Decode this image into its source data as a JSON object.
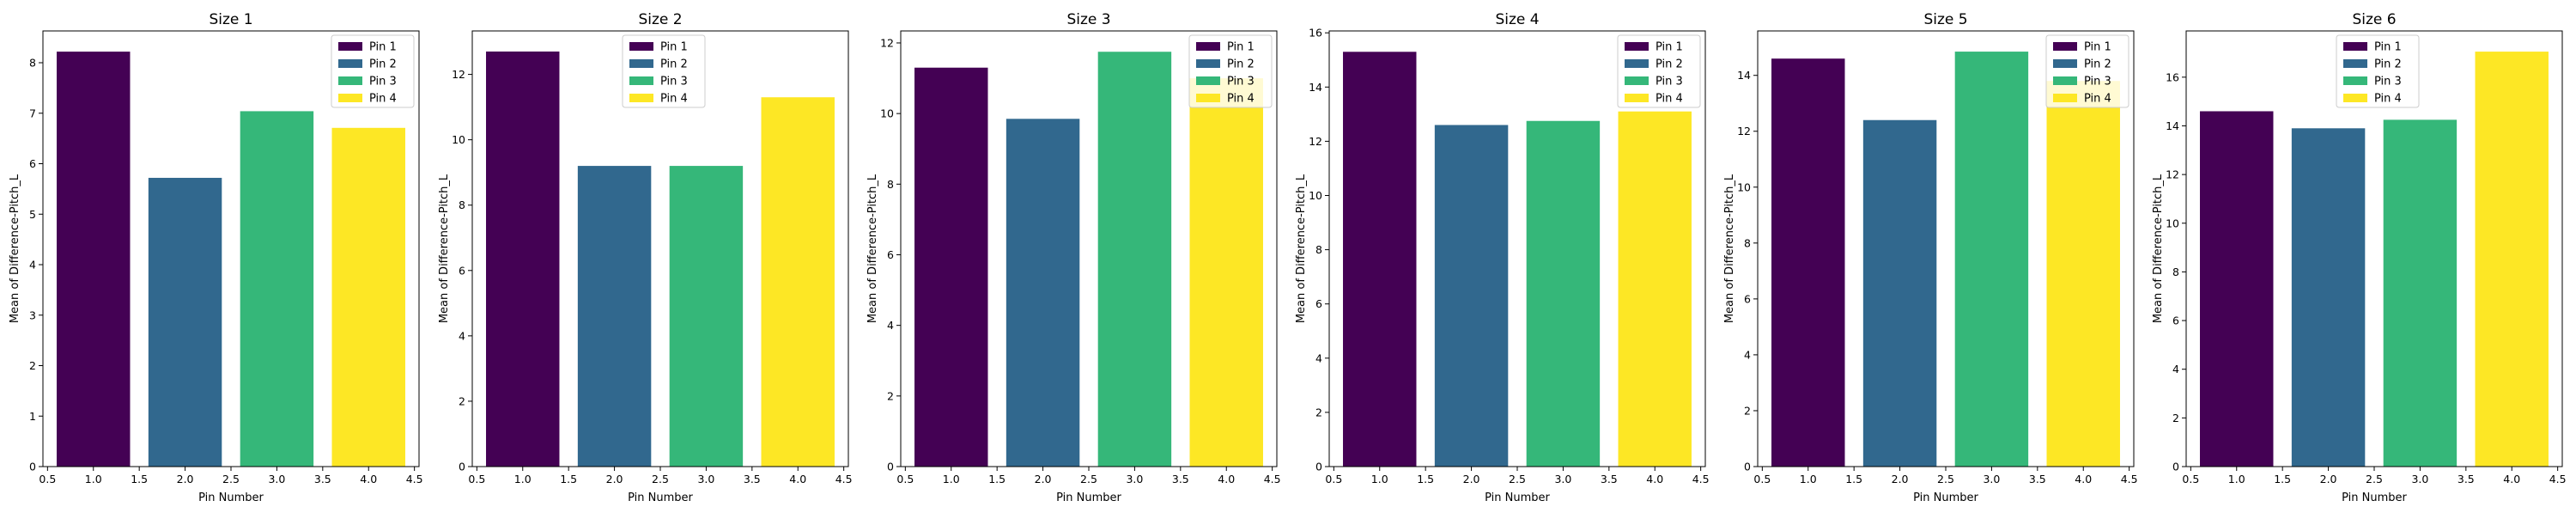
{
  "colors": {
    "pin1": "#440154",
    "pin2": "#31688e",
    "pin3": "#35b779",
    "pin4": "#fde725"
  },
  "chart_data": [
    {
      "type": "bar",
      "title": "Size 1",
      "xlabel": "Pin Number",
      "ylabel": "Mean of Difference-Pitch_L",
      "x": [
        1,
        2,
        3,
        4
      ],
      "values": [
        8.22,
        5.72,
        7.04,
        6.71
      ],
      "legend": [
        "Pin 1",
        "Pin 2",
        "Pin 3",
        "Pin 4"
      ],
      "legend_position": "top-right",
      "xlim": [
        0.45,
        4.55
      ],
      "xticks": [
        0.5,
        1.0,
        1.5,
        2.0,
        2.5,
        3.0,
        3.5,
        4.0,
        4.5
      ],
      "xticklabels": [
        "0.5",
        "1.0",
        "1.5",
        "2.0",
        "2.5",
        "3.0",
        "3.5",
        "4.0",
        "4.5"
      ],
      "ylim": [
        0,
        8.63
      ],
      "yticks": [
        0,
        1,
        2,
        3,
        4,
        5,
        6,
        7,
        8
      ],
      "yticklabels": [
        "0",
        "1",
        "2",
        "3",
        "4",
        "5",
        "6",
        "7",
        "8"
      ],
      "grid": false
    },
    {
      "type": "bar",
      "title": "Size 2",
      "xlabel": "Pin Number",
      "ylabel": "Mean of Difference-Pitch_L",
      "x": [
        1,
        2,
        3,
        4
      ],
      "values": [
        12.7,
        9.2,
        9.2,
        11.3
      ],
      "legend": [
        "Pin 1",
        "Pin 2",
        "Pin 3",
        "Pin 4"
      ],
      "legend_position": "top-center",
      "xlim": [
        0.45,
        4.55
      ],
      "xticks": [
        0.5,
        1.0,
        1.5,
        2.0,
        2.5,
        3.0,
        3.5,
        4.0,
        4.5
      ],
      "xticklabels": [
        "0.5",
        "1.0",
        "1.5",
        "2.0",
        "2.5",
        "3.0",
        "3.5",
        "4.0",
        "4.5"
      ],
      "ylim": [
        0,
        13.33
      ],
      "yticks": [
        0,
        2,
        4,
        6,
        8,
        10,
        12
      ],
      "yticklabels": [
        "0",
        "2",
        "4",
        "6",
        "8",
        "10",
        "12"
      ],
      "grid": false
    },
    {
      "type": "bar",
      "title": "Size 3",
      "xlabel": "Pin Number",
      "ylabel": "Mean of Difference-Pitch_L",
      "x": [
        1,
        2,
        3,
        4
      ],
      "values": [
        11.3,
        9.85,
        11.75,
        11.0
      ],
      "legend": [
        "Pin 1",
        "Pin 2",
        "Pin 3",
        "Pin 4"
      ],
      "legend_position": "top-right",
      "xlim": [
        0.45,
        4.55
      ],
      "xticks": [
        0.5,
        1.0,
        1.5,
        2.0,
        2.5,
        3.0,
        3.5,
        4.0,
        4.5
      ],
      "xticklabels": [
        "0.5",
        "1.0",
        "1.5",
        "2.0",
        "2.5",
        "3.0",
        "3.5",
        "4.0",
        "4.5"
      ],
      "ylim": [
        0,
        12.34
      ],
      "yticks": [
        0,
        2,
        4,
        6,
        8,
        10,
        12
      ],
      "yticklabels": [
        "0",
        "2",
        "4",
        "6",
        "8",
        "10",
        "12"
      ],
      "grid": false
    },
    {
      "type": "bar",
      "title": "Size 4",
      "xlabel": "Pin Number",
      "ylabel": "Mean of Difference-Pitch_L",
      "x": [
        1,
        2,
        3,
        4
      ],
      "values": [
        15.3,
        12.6,
        12.75,
        13.1
      ],
      "legend": [
        "Pin 1",
        "Pin 2",
        "Pin 3",
        "Pin 4"
      ],
      "legend_position": "top-right",
      "xlim": [
        0.45,
        4.55
      ],
      "xticks": [
        0.5,
        1.0,
        1.5,
        2.0,
        2.5,
        3.0,
        3.5,
        4.0,
        4.5
      ],
      "xticklabels": [
        "0.5",
        "1.0",
        "1.5",
        "2.0",
        "2.5",
        "3.0",
        "3.5",
        "4.0",
        "4.5"
      ],
      "ylim": [
        0,
        16.07
      ],
      "yticks": [
        0,
        2,
        4,
        6,
        8,
        10,
        12,
        14,
        16
      ],
      "yticklabels": [
        "0",
        "2",
        "4",
        "6",
        "8",
        "10",
        "12",
        "14",
        "16"
      ],
      "grid": false
    },
    {
      "type": "bar",
      "title": "Size 5",
      "xlabel": "Pin Number",
      "ylabel": "Mean of Difference-Pitch_L",
      "x": [
        1,
        2,
        3,
        4
      ],
      "values": [
        14.6,
        12.4,
        14.85,
        13.8
      ],
      "legend": [
        "Pin 1",
        "Pin 2",
        "Pin 3",
        "Pin 4"
      ],
      "legend_position": "top-right",
      "xlim": [
        0.45,
        4.55
      ],
      "xticks": [
        0.5,
        1.0,
        1.5,
        2.0,
        2.5,
        3.0,
        3.5,
        4.0,
        4.5
      ],
      "xticklabels": [
        "0.5",
        "1.0",
        "1.5",
        "2.0",
        "2.5",
        "3.0",
        "3.5",
        "4.0",
        "4.5"
      ],
      "ylim": [
        0,
        15.59
      ],
      "yticks": [
        0,
        2,
        4,
        6,
        8,
        10,
        12,
        14
      ],
      "yticklabels": [
        "0",
        "2",
        "4",
        "6",
        "8",
        "10",
        "12",
        "14"
      ],
      "grid": false
    },
    {
      "type": "bar",
      "title": "Size 6",
      "xlabel": "Pin Number",
      "ylabel": "Mean of Difference-Pitch_L",
      "x": [
        1,
        2,
        3,
        4
      ],
      "values": [
        14.6,
        13.9,
        14.25,
        17.05
      ],
      "legend": [
        "Pin 1",
        "Pin 2",
        "Pin 3",
        "Pin 4"
      ],
      "legend_position": "top-center",
      "xlim": [
        0.45,
        4.55
      ],
      "xticks": [
        0.5,
        1.0,
        1.5,
        2.0,
        2.5,
        3.0,
        3.5,
        4.0,
        4.5
      ],
      "xticklabels": [
        "0.5",
        "1.0",
        "1.5",
        "2.0",
        "2.5",
        "3.0",
        "3.5",
        "4.0",
        "4.5"
      ],
      "ylim": [
        0,
        17.9
      ],
      "yticks": [
        0,
        2,
        4,
        6,
        8,
        10,
        12,
        14,
        16
      ],
      "yticklabels": [
        "0",
        "2",
        "4",
        "6",
        "8",
        "10",
        "12",
        "14",
        "16"
      ],
      "grid": false
    }
  ]
}
